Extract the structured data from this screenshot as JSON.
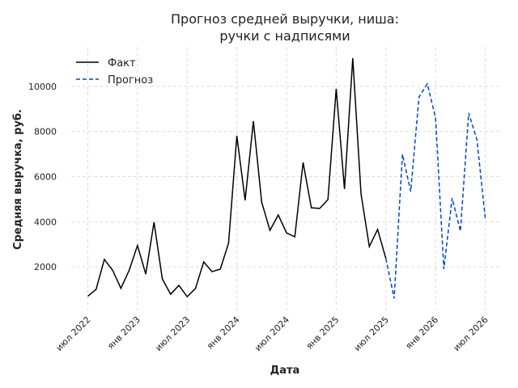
{
  "chart_data": {
    "type": "line",
    "title": [
      "Прогноз средней выручки, ниша:",
      "ручки с надписями"
    ],
    "xlabel": "Дата",
    "ylabel": "Средняя выручка, руб.",
    "series": [
      {
        "name": "Факт",
        "color": "#000000",
        "dash": false,
        "x": [
          "2022-07",
          "2022-08",
          "2022-09",
          "2022-10",
          "2022-11",
          "2022-12",
          "2023-01",
          "2023-02",
          "2023-03",
          "2023-04",
          "2023-05",
          "2023-06",
          "2023-07",
          "2023-08",
          "2023-09",
          "2023-10",
          "2023-11",
          "2023-12",
          "2024-01",
          "2024-02",
          "2024-03",
          "2024-04",
          "2024-05",
          "2024-06",
          "2024-07",
          "2024-08",
          "2024-09",
          "2024-10",
          "2024-11",
          "2024-12",
          "2025-01",
          "2025-02",
          "2025-03",
          "2025-04",
          "2025-05",
          "2025-06",
          "2025-07"
        ],
        "values": [
          700,
          1000,
          2330,
          1850,
          1050,
          1850,
          2950,
          1680,
          3980,
          1470,
          790,
          1180,
          680,
          1040,
          2220,
          1790,
          1900,
          3050,
          7810,
          4950,
          8460,
          4870,
          3620,
          4300,
          3510,
          3330,
          6630,
          4620,
          4590,
          4980,
          9890,
          5450,
          11250,
          5230,
          2900,
          3660,
          2370
        ]
      },
      {
        "name": "Прогноз",
        "color": "#0044cc",
        "dash": true,
        "x": [
          "2025-07",
          "2025-08",
          "2025-09",
          "2025-10",
          "2025-11",
          "2025-12",
          "2026-01",
          "2026-02",
          "2026-03",
          "2026-04",
          "2026-05",
          "2026-06",
          "2026-07"
        ],
        "values": [
          2370,
          600,
          6990,
          5340,
          9530,
          10110,
          8600,
          1900,
          5050,
          3580,
          8820,
          7630,
          4160
        ]
      }
    ],
    "xlim": [
      "2022-05",
      "2026-09"
    ],
    "xticks": [
      {
        "value": "2022-07",
        "label": "июл 2022"
      },
      {
        "value": "2023-01",
        "label": "янв 2023"
      },
      {
        "value": "2023-07",
        "label": "июл 2023"
      },
      {
        "value": "2024-01",
        "label": "янв 2024"
      },
      {
        "value": "2024-07",
        "label": "июл 2024"
      },
      {
        "value": "2025-01",
        "label": "янв 2025"
      },
      {
        "value": "2025-07",
        "label": "июл 2025"
      },
      {
        "value": "2026-01",
        "label": "янв 2026"
      },
      {
        "value": "2026-07",
        "label": "июл 2026"
      }
    ],
    "ylim": [
      0,
      11750
    ],
    "yticks": [
      2000,
      4000,
      6000,
      8000,
      10000
    ],
    "grid": true,
    "legend": "upper left"
  }
}
